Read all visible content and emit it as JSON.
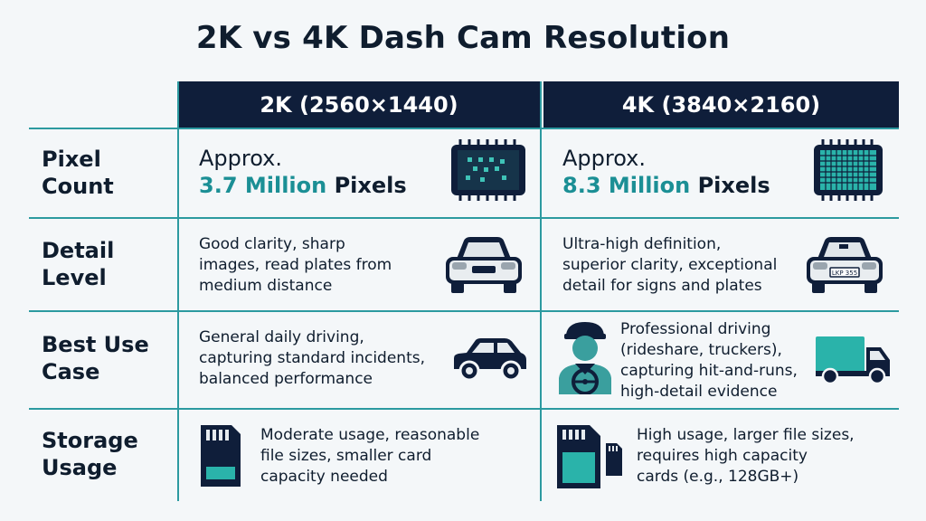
{
  "title": "2K vs 4K Dash Cam Resolution",
  "columns": [
    {
      "header": "2K (2560×1440)"
    },
    {
      "header": "4K (3840×2160)"
    }
  ],
  "rows": {
    "pixel_count": {
      "label_line1": "Pixel",
      "label_line2": "Count",
      "c2k": {
        "approx": "Approx.",
        "value": "3.7 Million",
        "unit": "Pixels"
      },
      "c4k": {
        "approx": "Approx.",
        "value": "8.3 Million",
        "unit": "Pixels"
      }
    },
    "detail_level": {
      "label_line1": "Detail",
      "label_line2": "Level",
      "c2k": [
        "Good clarity, sharp",
        "images, read plates from",
        "medium distance"
      ],
      "c4k": [
        "Ultra-high definition,",
        "superior clarity, exceptional",
        "detail for signs and plates"
      ],
      "plate_text": "LKP 355"
    },
    "best_use": {
      "label_line1": "Best Use",
      "label_line2": "Case",
      "c2k": [
        "General daily driving,",
        "capturing standard incidents,",
        "balanced performance"
      ],
      "c4k": [
        "Professional driving",
        "(rideshare, truckers),",
        "capturing hit-and-runs,",
        "high-detail evidence"
      ]
    },
    "storage": {
      "label_line1": "Storage",
      "label_line2": "Usage",
      "c2k": [
        "Moderate usage, reasonable",
        "file sizes, smaller card",
        "capacity needed"
      ],
      "c4k": [
        "High usage, larger file sizes,",
        "requires high capacity",
        "cards (e.g., 128GB+)"
      ]
    }
  },
  "icons": {
    "chip_2k": "sparse-pixel-chip-icon",
    "chip_4k": "dense-pixel-chip-icon",
    "car": "car-front-icon",
    "hatch": "hatchback-car-icon",
    "driver": "professional-driver-icon",
    "truck": "delivery-truck-icon",
    "sd": "sd-card-icon",
    "sd_big": "high-capacity-sd-card-icon"
  },
  "colors": {
    "navy": "#0f1e3a",
    "teal": "#1b8f95",
    "line": "#2c9aa0"
  }
}
